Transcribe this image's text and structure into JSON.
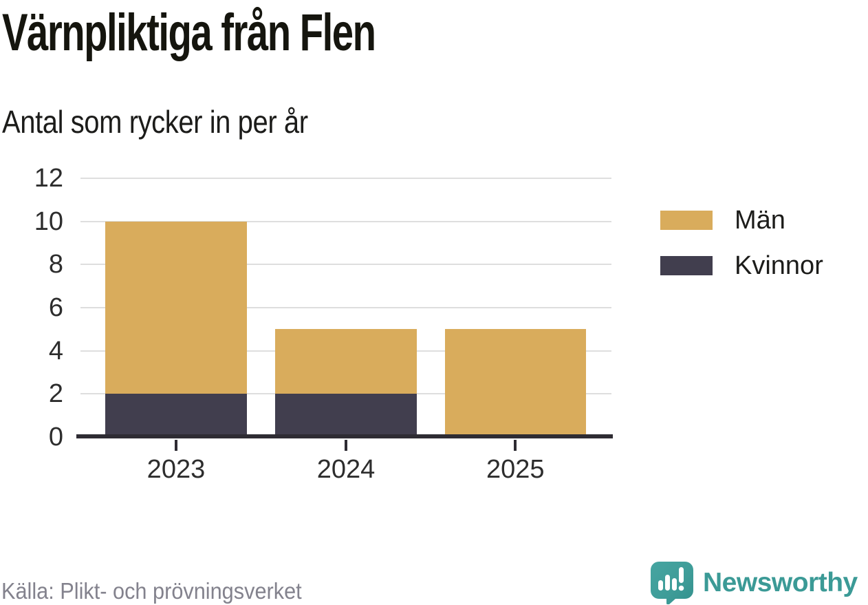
{
  "title": "Värnpliktiga från Flen",
  "subtitle": "Antal som rycker in per år",
  "chart_data": {
    "type": "bar",
    "stacked": true,
    "title": "Värnpliktiga från Flen",
    "subtitle": "Antal som rycker in per år",
    "categories": [
      "2023",
      "2024",
      "2025"
    ],
    "series": [
      {
        "name": "Kvinnor",
        "color": "#413e4e",
        "values": [
          2,
          2,
          0
        ]
      },
      {
        "name": "Män",
        "color": "#d9ac5c",
        "values": [
          8,
          3,
          5
        ]
      }
    ],
    "totals": [
      10,
      5,
      5
    ],
    "xlabel": "",
    "ylabel": "",
    "ylim": [
      0,
      12
    ],
    "yticks": [
      0,
      2,
      4,
      6,
      8,
      10,
      12
    ],
    "grid": true,
    "legend_position": "right"
  },
  "legend": {
    "items": [
      {
        "label": "Män",
        "color": "#d9ac5c"
      },
      {
        "label": "Kvinnor",
        "color": "#413e4e"
      }
    ]
  },
  "source": {
    "label": "Källa: Plikt- och prövningsverket"
  },
  "brand": {
    "name": "Newsworthy",
    "color": "#3b9a96",
    "icon": "newsworthy-speech-bubble-bar-chart-icon"
  },
  "colors": {
    "grid": "#dedede",
    "axis": "#2e2c33",
    "tick_text": "#2d2d2d",
    "muted_text": "#83828d"
  }
}
